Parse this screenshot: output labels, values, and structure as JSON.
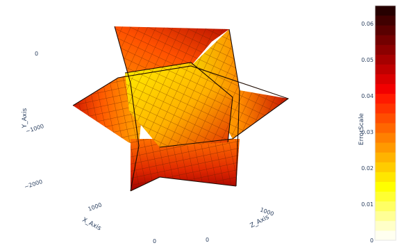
{
  "chart_data": {
    "type": "surface",
    "colorscale": "hot (reversed)",
    "colorbar": {
      "title": "ErrorScale",
      "range": [
        0,
        0.065
      ],
      "ticks": [
        "0",
        "0.01",
        "0.02",
        "0.03",
        "0.04",
        "0.05",
        "0.06"
      ],
      "colors": [
        "#fffff0",
        "#ffffc8",
        "#ffff96",
        "#ffff64",
        "#ffff32",
        "#ffff00",
        "#ffe600",
        "#ffcc00",
        "#ffb300",
        "#ff9900",
        "#ff8000",
        "#ff6600",
        "#ff4d00",
        "#ff3300",
        "#ff1a00",
        "#f20000",
        "#d90000",
        "#bf0000",
        "#a60000",
        "#8c0000",
        "#730000",
        "#590000",
        "#400000",
        "#260000"
      ]
    },
    "axes": {
      "x": {
        "title": "X_Axis",
        "ticks": [
          "1000",
          "0"
        ]
      },
      "y": {
        "title": "Y_Axis",
        "ticks": [
          "0",
          "−1000",
          "−2000"
        ]
      },
      "z": {
        "title": "Z_Axis",
        "ticks": [
          "1000",
          "0"
        ]
      }
    }
  }
}
